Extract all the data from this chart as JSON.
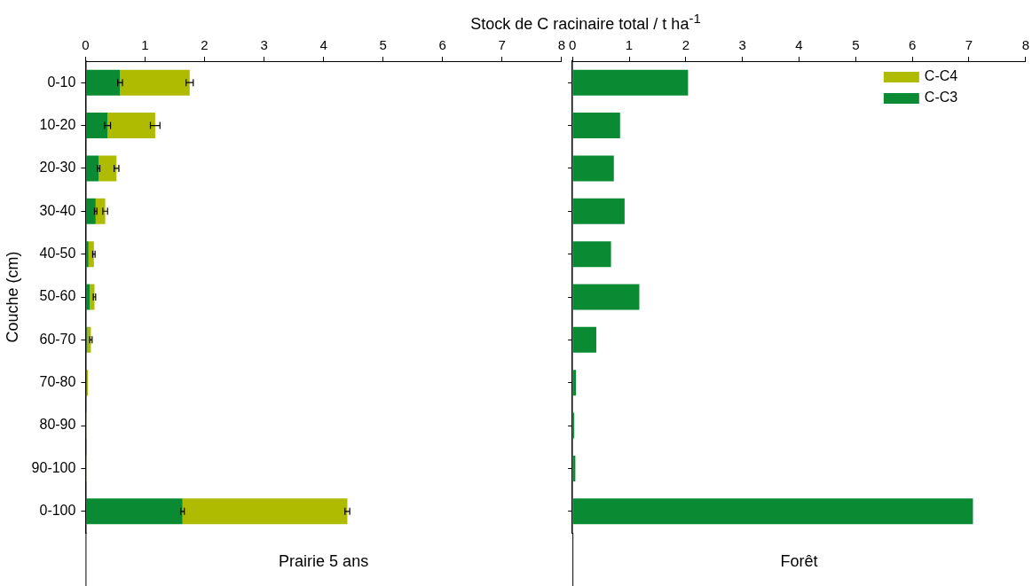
{
  "chart_data": [
    {
      "type": "bar",
      "orientation": "horizontal",
      "stacked": true,
      "xlabel": "Stock de C racinaire total / t ha$^{-1}$",
      "ylabel": "Couche (cm)",
      "categories": [
        "0-10",
        "10-20",
        "20-30",
        "30-40",
        "40-50",
        "50-60",
        "60-70",
        "70-80",
        "80-90",
        "90-100",
        "0-100"
      ],
      "series": [
        {
          "color": "#0b8a34",
          "values": [
            0.58,
            0.37,
            0.22,
            0.17,
            0.05,
            0.07,
            0.03,
            0.02,
            null,
            null,
            1.63
          ],
          "errors": [
            0.04,
            0.05,
            0.02,
            0.02,
            null,
            null,
            null,
            null,
            null,
            null,
            0.03
          ]
        },
        {
          "color": "#aebb00",
          "values": [
            1.17,
            0.8,
            0.3,
            0.16,
            0.09,
            0.08,
            0.06,
            0.02,
            0.02,
            0.02,
            2.77
          ],
          "errors": [
            0.06,
            0.08,
            0.04,
            0.04,
            0.02,
            0.02,
            0.02,
            null,
            null,
            null,
            0.04
          ]
        }
      ],
      "xlim": [
        0,
        8
      ],
      "xticks": [
        0,
        1,
        2,
        3,
        4,
        5,
        6,
        7,
        8
      ],
      "grid": false,
      "legend": false,
      "annotations": [
        "Prairie 5 ans"
      ]
    },
    {
      "type": "bar",
      "orientation": "horizontal",
      "stacked": true,
      "categories": [
        null,
        null,
        null,
        null,
        null,
        null,
        null,
        null,
        null,
        null,
        null
      ],
      "series": [
        {
          "name": "C-C3",
          "color": "#0b8a34",
          "values": [
            2.04,
            0.84,
            0.73,
            0.92,
            0.68,
            1.18,
            0.42,
            0.06,
            0.03,
            0.05,
            7.07
          ]
        },
        {
          "name": "C-C4",
          "color": "#aebb00",
          "values": [
            null,
            null,
            null,
            null,
            null,
            null,
            null,
            null,
            null,
            null,
            null
          ]
        }
      ],
      "xlim": [
        0,
        8
      ],
      "xticks": [
        0,
        1,
        2,
        3,
        4,
        5,
        6,
        7,
        8
      ],
      "grid": false,
      "legend": "top right",
      "tick_labels": "x",
      "annotations": [
        "Forêt"
      ]
    }
  ]
}
